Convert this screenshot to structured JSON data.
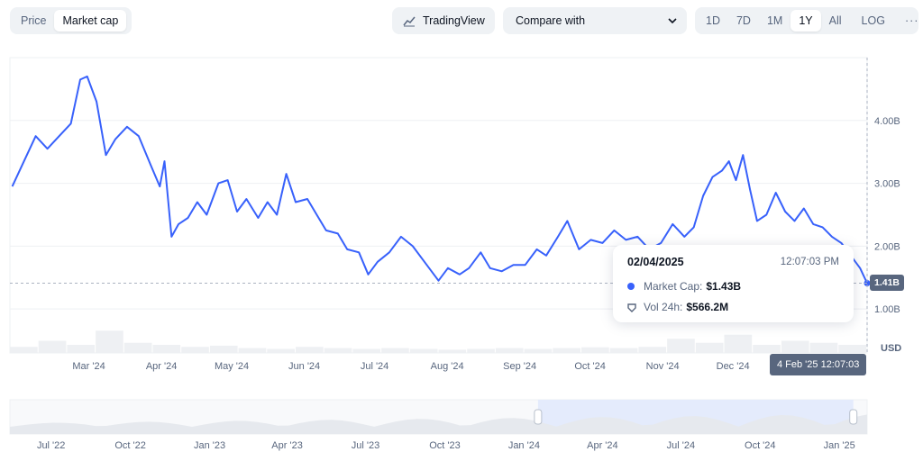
{
  "view_toggle": {
    "options": [
      "Price",
      "Market cap"
    ],
    "active": "Market cap"
  },
  "tradingview_label": "TradingView",
  "compare": {
    "label": "Compare with"
  },
  "ranges": [
    "1D",
    "7D",
    "1M",
    "1Y",
    "All",
    "LOG"
  ],
  "active_range": "1Y",
  "more_icon": "ellipsis-icon",
  "currency_label": "USD",
  "colors": {
    "line": "#3861fb",
    "accent": "#3861fb",
    "volume": "#eef0f3",
    "grid": "#eef0f3",
    "tag": "#58667e",
    "navigator_sel": "#e4ebfc"
  },
  "tooltip": {
    "date": "02/04/2025",
    "time": "12:07:03 PM",
    "market_cap_label": "Market Cap:",
    "market_cap_value": "$1.43B",
    "volume_label": "Vol 24h:",
    "volume_value": "$566.2M"
  },
  "current_value_tag": "1.41B",
  "crosshair_time_tag": "4 Feb '25 12:07:03",
  "chart_data": [
    {
      "type": "line",
      "title": "",
      "ylabel": "",
      "y_unit": "USD (billions)",
      "y_ticks": [
        1.0,
        2.0,
        3.0,
        4.0
      ],
      "y_tick_labels": [
        "1.00B",
        "2.00B",
        "3.00B",
        "4.00B"
      ],
      "ylim": [
        0.3,
        5.0
      ],
      "x_tick_labels": [
        "Mar '24",
        "Apr '24",
        "May '24",
        "Jun '24",
        "Jul '24",
        "Aug '24",
        "Sep '24",
        "Oct '24",
        "Nov '24",
        "Dec '24"
      ],
      "grid": true,
      "legend": "none",
      "series": [
        {
          "values_by_month": [
            [
              "2024-02-05",
              2.95
            ],
            [
              "2024-02-10",
              3.35
            ],
            [
              "2024-02-15",
              3.75
            ],
            [
              "2024-02-20",
              3.55
            ],
            [
              "2024-02-25",
              3.75
            ],
            [
              "2024-03-01",
              3.95
            ],
            [
              "2024-03-05",
              4.65
            ],
            [
              "2024-03-08",
              4.7
            ],
            [
              "2024-03-12",
              4.3
            ],
            [
              "2024-03-16",
              3.45
            ],
            [
              "2024-03-20",
              3.7
            ],
            [
              "2024-03-25",
              3.9
            ],
            [
              "2024-03-30",
              3.75
            ],
            [
              "2024-04-04",
              3.3
            ],
            [
              "2024-04-08",
              2.95
            ],
            [
              "2024-04-10",
              3.35
            ],
            [
              "2024-04-13",
              2.15
            ],
            [
              "2024-04-16",
              2.35
            ],
            [
              "2024-04-20",
              2.45
            ],
            [
              "2024-04-24",
              2.7
            ],
            [
              "2024-04-28",
              2.5
            ],
            [
              "2024-05-03",
              3.0
            ],
            [
              "2024-05-07",
              3.05
            ],
            [
              "2024-05-11",
              2.55
            ],
            [
              "2024-05-15",
              2.75
            ],
            [
              "2024-05-20",
              2.45
            ],
            [
              "2024-05-24",
              2.7
            ],
            [
              "2024-05-28",
              2.5
            ],
            [
              "2024-06-01",
              3.15
            ],
            [
              "2024-06-05",
              2.7
            ],
            [
              "2024-06-10",
              2.75
            ],
            [
              "2024-06-14",
              2.5
            ],
            [
              "2024-06-18",
              2.25
            ],
            [
              "2024-06-23",
              2.2
            ],
            [
              "2024-06-27",
              1.95
            ],
            [
              "2024-07-02",
              1.9
            ],
            [
              "2024-07-06",
              1.55
            ],
            [
              "2024-07-10",
              1.75
            ],
            [
              "2024-07-15",
              1.9
            ],
            [
              "2024-07-20",
              2.15
            ],
            [
              "2024-07-25",
              2.0
            ],
            [
              "2024-07-30",
              1.75
            ],
            [
              "2024-08-05",
              1.45
            ],
            [
              "2024-08-09",
              1.65
            ],
            [
              "2024-08-14",
              1.55
            ],
            [
              "2024-08-18",
              1.65
            ],
            [
              "2024-08-23",
              1.9
            ],
            [
              "2024-08-27",
              1.65
            ],
            [
              "2024-09-01",
              1.6
            ],
            [
              "2024-09-06",
              1.7
            ],
            [
              "2024-09-11",
              1.7
            ],
            [
              "2024-09-16",
              1.95
            ],
            [
              "2024-09-20",
              1.85
            ],
            [
              "2024-09-25",
              2.15
            ],
            [
              "2024-09-29",
              2.4
            ],
            [
              "2024-10-04",
              1.95
            ],
            [
              "2024-10-09",
              2.1
            ],
            [
              "2024-10-14",
              2.05
            ],
            [
              "2024-10-19",
              2.25
            ],
            [
              "2024-10-24",
              2.1
            ],
            [
              "2024-10-29",
              2.15
            ],
            [
              "2024-11-03",
              1.95
            ],
            [
              "2024-11-08",
              2.05
            ],
            [
              "2024-11-13",
              2.35
            ],
            [
              "2024-11-18",
              2.15
            ],
            [
              "2024-11-22",
              2.3
            ],
            [
              "2024-11-26",
              2.8
            ],
            [
              "2024-11-30",
              3.1
            ],
            [
              "2024-12-04",
              3.2
            ],
            [
              "2024-12-07",
              3.35
            ],
            [
              "2024-12-10",
              3.05
            ],
            [
              "2024-12-13",
              3.45
            ],
            [
              "2024-12-16",
              2.9
            ],
            [
              "2024-12-19",
              2.4
            ],
            [
              "2024-12-23",
              2.5
            ],
            [
              "2024-12-27",
              2.85
            ],
            [
              "2024-12-31",
              2.55
            ],
            [
              "2025-01-04",
              2.4
            ],
            [
              "2025-01-08",
              2.6
            ],
            [
              "2025-01-12",
              2.35
            ],
            [
              "2025-01-16",
              2.3
            ],
            [
              "2025-01-20",
              2.15
            ],
            [
              "2025-01-24",
              2.05
            ],
            [
              "2025-01-28",
              1.85
            ],
            [
              "2025-02-01",
              1.65
            ],
            [
              "2025-02-04",
              1.41
            ]
          ]
        }
      ],
      "volume_relative": [
        0.15,
        0.3,
        0.2,
        0.55,
        0.25,
        0.2,
        0.15,
        0.18,
        0.12,
        0.1,
        0.15,
        0.12,
        0.1,
        0.12,
        0.1,
        0.08,
        0.1,
        0.12,
        0.1,
        0.12,
        0.14,
        0.12,
        0.15,
        0.35,
        0.25,
        0.45,
        0.2,
        0.3,
        0.25,
        0.2
      ]
    },
    {
      "type": "area",
      "role": "navigator",
      "x_tick_labels": [
        "Jul '22",
        "Oct '22",
        "Jan '23",
        "Apr '23",
        "Jul '23",
        "Oct '23",
        "Jan '24",
        "Apr '24",
        "Jul '24",
        "Oct '24",
        "Jan '25"
      ],
      "selected_range": [
        "2024-02-04",
        "2025-02-04"
      ]
    }
  ]
}
